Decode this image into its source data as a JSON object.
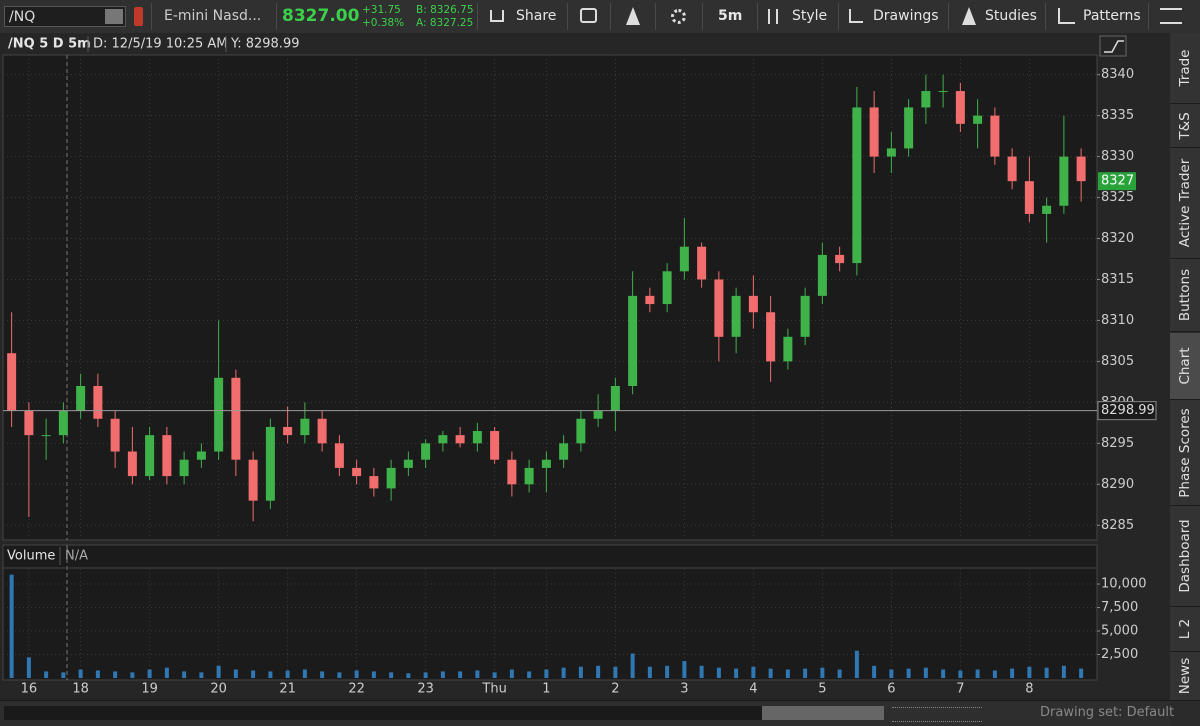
{
  "toolbar": {
    "symbol": "/NQ",
    "description": "E-mini Nasd...",
    "last": "8327.00",
    "change": "+31.75",
    "change_percent": "+0.38%",
    "bid": "B: 8326.75",
    "ask": "A: 8327.25",
    "buttons": [
      "Share",
      "5m",
      "Style",
      "Drawings",
      "Studies",
      "Patterns"
    ]
  },
  "side_tabs": [
    "Trade",
    "T&S",
    "Active Trader",
    "Buttons",
    "Chart",
    "Phase Scores",
    "Dashboard",
    "L 2",
    "News"
  ],
  "footer": {
    "drawing_set": "Drawing set: Default"
  },
  "chart_data": [
    {
      "type": "candlestick",
      "title": "/NQ 5 D 5m",
      "date_label": "D: 12/5/19 10:25 AM",
      "cursor": {
        "value": 8298.99,
        "label": "Y: 8298.99"
      },
      "last_price": 8327,
      "categories": [
        null,
        "16",
        null,
        null,
        "18",
        null,
        null,
        null,
        "19",
        null,
        null,
        null,
        "20",
        null,
        null,
        null,
        "21",
        null,
        null,
        null,
        "22",
        null,
        null,
        null,
        "23",
        null,
        null,
        null,
        "Thu",
        null,
        null,
        "1",
        null,
        null,
        null,
        "2",
        null,
        null,
        null,
        "3",
        null,
        null,
        null,
        "4",
        null,
        null,
        null,
        "5",
        null,
        null,
        null,
        "6",
        null,
        null,
        null,
        "7",
        null,
        null,
        null,
        "8",
        null,
        null,
        null
      ],
      "open": [
        8306,
        8299,
        8296,
        8296,
        8299,
        8302,
        8298,
        8294,
        8291,
        8296,
        8291,
        8293,
        8294,
        8303,
        8293,
        8288,
        8297,
        8296,
        8298,
        8295,
        8292,
        8291,
        8289.5,
        8292,
        8293,
        8295,
        8296,
        8295,
        8296.5,
        8293,
        8290,
        8292,
        8293,
        8295,
        8298,
        8299,
        8302,
        8313,
        8312,
        8316,
        8319,
        8315,
        8308,
        8313,
        8311,
        8305,
        8308,
        8313,
        8318,
        8317,
        8336,
        8330,
        8331,
        8336,
        8338,
        8338,
        8334,
        8335,
        8330,
        8327,
        8323,
        8324,
        8330
      ],
      "high": [
        8311,
        8300,
        8298,
        8300,
        8303.5,
        8303.5,
        8299,
        8297,
        8297,
        8297,
        8294,
        8295,
        8310,
        8304,
        8294,
        8298,
        8299.5,
        8300,
        8299,
        8296,
        8293,
        8292,
        8293,
        8294,
        8295.5,
        8296.5,
        8297,
        8297.5,
        8297,
        8294,
        8293,
        8294,
        8296,
        8299,
        8301,
        8303,
        8316,
        8314,
        8317,
        8322.5,
        8319.5,
        8316,
        8314,
        8315.5,
        8313,
        8309,
        8314,
        8319.5,
        8319,
        8338.5,
        8338,
        8333,
        8337,
        8340,
        8340,
        8339,
        8337,
        8336,
        8331,
        8330,
        8325,
        8335,
        8331
      ],
      "low": [
        8297,
        8286,
        8293,
        8295,
        8298,
        8297,
        8292,
        8290,
        8290.5,
        8290,
        8290,
        8292,
        8293,
        8291,
        8285.5,
        8287,
        8295,
        8295,
        8294,
        8291,
        8290,
        8288.5,
        8288,
        8291,
        8292,
        8294,
        8294.5,
        8294,
        8292.5,
        8288.5,
        8289,
        8289,
        8292,
        8294,
        8297,
        8296.5,
        8301,
        8311,
        8311,
        8315,
        8314,
        8305,
        8306,
        8309,
        8302.5,
        8304,
        8307,
        8312,
        8316,
        8315.5,
        8328,
        8328,
        8330,
        8334,
        8336,
        8333,
        8331,
        8329,
        8326,
        8322,
        8319.5,
        8323,
        8324.5
      ],
      "close": [
        8299,
        8296,
        8296,
        8299,
        8302,
        8298,
        8294,
        8291,
        8296,
        8291,
        8293,
        8294,
        8303,
        8293,
        8288,
        8297,
        8296,
        8298,
        8295,
        8292,
        8291,
        8289.5,
        8292,
        8293,
        8295,
        8296,
        8295,
        8296.5,
        8293,
        8290,
        8292,
        8293,
        8295,
        8298,
        8299,
        8302,
        8313,
        8312,
        8316,
        8319,
        8315,
        8308,
        8313,
        8311,
        8305,
        8308,
        8313,
        8318,
        8317,
        8336,
        8330,
        8331,
        8336,
        8338,
        8338,
        8334,
        8335,
        8330,
        8327,
        8323,
        8324,
        8330,
        8327
      ],
      "up_color": "#3fb24a",
      "down_color": "#f26d6d",
      "ylim": [
        8283.2,
        8342.4
      ],
      "yticks": [
        8285,
        8290,
        8295,
        8300,
        8305,
        8310,
        8315,
        8320,
        8325,
        8330,
        8335,
        8340
      ],
      "grid": true
    },
    {
      "type": "bar",
      "title": "Volume",
      "subtitle": "N/A",
      "values": [
        11000,
        2200,
        700,
        600,
        900,
        800,
        700,
        600,
        900,
        1100,
        700,
        600,
        1300,
        900,
        800,
        700,
        800,
        900,
        700,
        600,
        800,
        700,
        600,
        500,
        600,
        700,
        700,
        800,
        600,
        900,
        700,
        900,
        1100,
        1200,
        1300,
        1200,
        2600,
        1200,
        1300,
        1800,
        1300,
        1100,
        1000,
        1200,
        1000,
        900,
        1000,
        1100,
        900,
        2900,
        1300,
        900,
        1000,
        1100,
        900,
        800,
        900,
        800,
        1000,
        1200,
        1100,
        1300,
        1000
      ],
      "color": "#2f78b4",
      "ylim": [
        0,
        11600
      ],
      "yticks": [
        {
          "value": 2500,
          "label": "2,500"
        },
        {
          "value": 5000,
          "label": "5,000"
        },
        {
          "value": 7500,
          "label": "7,500"
        },
        {
          "value": 10000,
          "label": "10,000"
        }
      ],
      "grid": true
    }
  ]
}
